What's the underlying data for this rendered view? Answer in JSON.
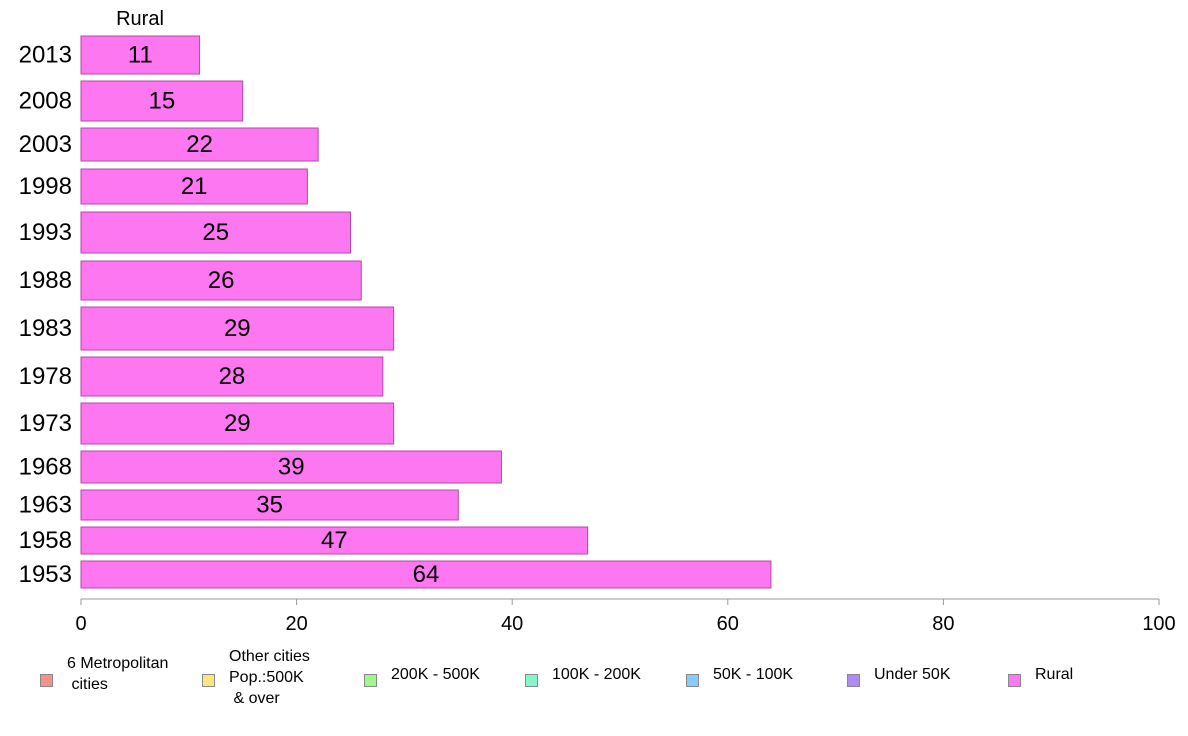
{
  "chart_data": {
    "type": "bar",
    "orientation": "horizontal",
    "panel_title": "Rural",
    "categories": [
      "2013",
      "2008",
      "2003",
      "1998",
      "1993",
      "1988",
      "1983",
      "1978",
      "1973",
      "1968",
      "1963",
      "1958",
      "1953"
    ],
    "series": [
      {
        "name": "Rural",
        "values": [
          11,
          15,
          22,
          21,
          25,
          26,
          29,
          28,
          29,
          39,
          35,
          47,
          64
        ]
      }
    ],
    "data_labels": [
      "11",
      "15",
      "22",
      "21",
      "25",
      "26",
      "29",
      "28",
      "29",
      "39",
      "35",
      "47",
      "64"
    ],
    "xlim": [
      0,
      100
    ],
    "x_ticks": [
      0,
      20,
      40,
      60,
      80,
      100
    ],
    "x_tick_labels": [
      "0",
      "20",
      "40",
      "60",
      "80",
      "100"
    ],
    "grid": false,
    "legend_position": "bottom",
    "bar_color": "#fd78f0",
    "bar_edge_color": "#b04aa8"
  },
  "legend": {
    "items": [
      {
        "label": "6 Metropolitan\n cities",
        "color": "#f8918a"
      },
      {
        "label": "Other cities\nPop.:500K\n & over",
        "color": "#fbe67c"
      },
      {
        "label": "200K - 500K",
        "color": "#9ef98d"
      },
      {
        "label": "100K - 200K",
        "color": "#84f7c6"
      },
      {
        "label": "50K - 100K",
        "color": "#88cbfa"
      },
      {
        "label": "Under 50K",
        "color": "#ad8af5"
      },
      {
        "label": "Rural",
        "color": "#fd78f0"
      }
    ]
  }
}
